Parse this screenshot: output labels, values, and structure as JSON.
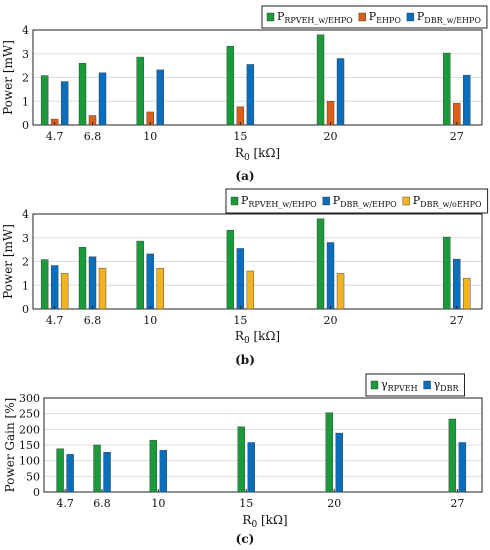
{
  "colors": {
    "green": "#1a9a3a",
    "orange": "#d95f1a",
    "blue": "#0a6ebd",
    "yellow": "#f0b323"
  },
  "chart_data": [
    {
      "type": "bar",
      "caption": "(a)",
      "xlabel": "R0 [kΩ]",
      "ylabel": "Power [mW]",
      "x": [
        4.7,
        6.8,
        10,
        15,
        20,
        27
      ],
      "xticklabels": [
        "4.7",
        "6.8",
        "10",
        "15",
        "20",
        "27"
      ],
      "ylim": [
        0,
        4
      ],
      "yticks": [
        0,
        1,
        2,
        3,
        4
      ],
      "grid": true,
      "legend": "top-right",
      "series": [
        {
          "name": "P",
          "sub": "RPVEH_w/EHPO",
          "color": "#1a9a3a",
          "values": [
            2.08,
            2.6,
            2.86,
            3.32,
            3.8,
            3.03
          ]
        },
        {
          "name": "P",
          "sub": "EHPO",
          "color": "#d95f1a",
          "values": [
            0.25,
            0.4,
            0.55,
            0.77,
            1.0,
            0.92
          ]
        },
        {
          "name": "P",
          "sub": "DBR_w/EHPO",
          "color": "#0a6ebd",
          "values": [
            1.83,
            2.2,
            2.32,
            2.55,
            2.8,
            2.1
          ]
        }
      ]
    },
    {
      "type": "bar",
      "caption": "(b)",
      "xlabel": "R0 [kΩ]",
      "ylabel": "Power [mW]",
      "x": [
        4.7,
        6.8,
        10,
        15,
        20,
        27
      ],
      "xticklabels": [
        "4.7",
        "6.8",
        "10",
        "15",
        "20",
        "27"
      ],
      "ylim": [
        0,
        4
      ],
      "yticks": [
        0,
        1,
        2,
        3,
        4
      ],
      "grid": true,
      "legend": "top-right",
      "series": [
        {
          "name": "P",
          "sub": "RPVEH_w/EHPO",
          "color": "#1a9a3a",
          "values": [
            2.08,
            2.6,
            2.86,
            3.32,
            3.8,
            3.03
          ]
        },
        {
          "name": "P",
          "sub": "DBR_w/EHPO",
          "color": "#0a6ebd",
          "values": [
            1.83,
            2.2,
            2.32,
            2.55,
            2.8,
            2.1
          ]
        },
        {
          "name": "P",
          "sub": "DBR_w/oEHPO",
          "color": "#f0b323",
          "values": [
            1.5,
            1.72,
            1.72,
            1.6,
            1.5,
            1.3
          ]
        }
      ]
    },
    {
      "type": "bar",
      "caption": "(c)",
      "xlabel": "R0 [kΩ]",
      "ylabel": "Power Gain [%]",
      "x": [
        4.7,
        6.8,
        10,
        15,
        20,
        27
      ],
      "xticklabels": [
        "4.7",
        "6.8",
        "10",
        "15",
        "20",
        "27"
      ],
      "ylim": [
        0,
        300
      ],
      "yticks": [
        0,
        50,
        100,
        150,
        200,
        250,
        300
      ],
      "grid": true,
      "legend": "top-right",
      "series": [
        {
          "name": "γ",
          "sub": "RPVEH",
          "color": "#1a9a3a",
          "values": [
            138,
            150,
            165,
            208,
            253,
            233
          ]
        },
        {
          "name": "γ",
          "sub": "DBR",
          "color": "#0a6ebd",
          "values": [
            120,
            127,
            133,
            158,
            188,
            158
          ]
        }
      ]
    }
  ]
}
